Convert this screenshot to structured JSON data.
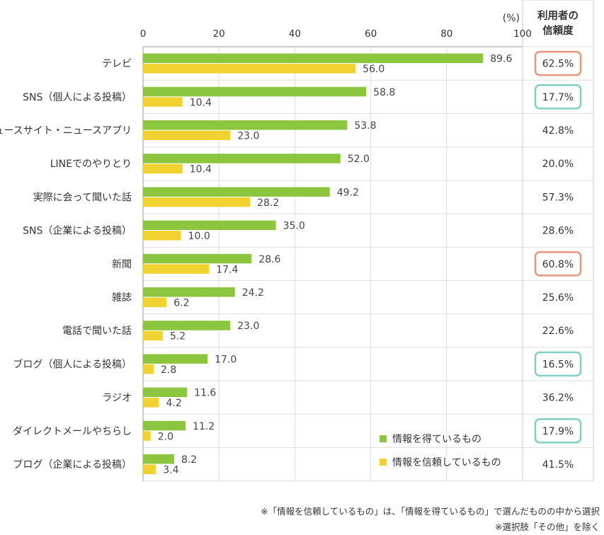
{
  "chart_data": {
    "type": "bar",
    "orientation": "horizontal",
    "unit_label": "(%)",
    "xlim": [
      0,
      100
    ],
    "x_ticks": [
      0,
      20,
      40,
      60,
      80,
      100
    ],
    "categories": [
      "テレビ",
      "SNS（個人による投稿）",
      "ニュースサイト・ニュースアプリ",
      "LINEでのやりとり",
      "実際に会って聞いた話",
      "SNS（企業による投稿）",
      "新聞",
      "雑誌",
      "電話で聞いた話",
      "ブログ（個人による投稿）",
      "ラジオ",
      "ダイレクトメールやちらし",
      "ブログ（企業による投稿）"
    ],
    "series": [
      {
        "name": "情報を得ているもの",
        "color": "#8cc63f",
        "values": [
          89.6,
          58.8,
          53.8,
          52.0,
          49.2,
          35.0,
          28.6,
          24.2,
          23.0,
          17.0,
          11.6,
          11.2,
          8.2
        ],
        "labels": [
          "89.6",
          "58.8",
          "53.8",
          "52.0",
          "49.2",
          "35.0",
          "28.6",
          "24.2",
          "23.0",
          "17.0",
          "11.6",
          "11.2",
          "8.2"
        ]
      },
      {
        "name": "情報を信頼しているもの",
        "color": "#f2d231",
        "values": [
          56.0,
          10.4,
          23.0,
          10.4,
          28.2,
          10.0,
          17.4,
          6.2,
          5.2,
          2.8,
          4.2,
          2.0,
          3.4
        ],
        "labels": [
          "56.0",
          "10.4",
          "23.0",
          "10.4",
          "28.2",
          "10.0",
          "17.4",
          "6.2",
          "5.2",
          "2.8",
          "4.2",
          "2.0",
          "3.4"
        ]
      }
    ],
    "legend_position": "bottom-right",
    "trust_column": {
      "header": [
        "利用者の",
        "信頼度"
      ],
      "values": [
        "62.5%",
        "17.7%",
        "42.8%",
        "20.0%",
        "57.3%",
        "28.6%",
        "60.8%",
        "25.6%",
        "22.6%",
        "16.5%",
        "36.2%",
        "17.9%",
        "41.5%"
      ],
      "highlight": [
        "high",
        "low",
        "",
        "",
        "",
        "",
        "high",
        "",
        "",
        "low",
        "",
        "low",
        ""
      ],
      "highlight_colors": {
        "high": "#e8967a",
        "low": "#7fd1c8"
      }
    }
  },
  "footnotes": [
    "※「情報を信頼しているもの」は、「情報を得ているもの」で選んだものの中から選択",
    "※選択肢「その他」を除く"
  ]
}
